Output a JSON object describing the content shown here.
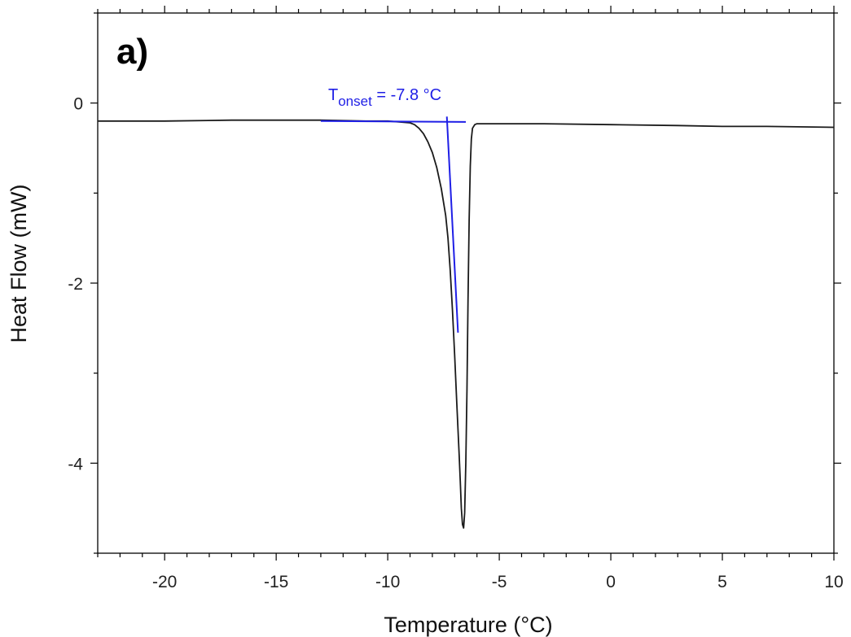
{
  "chart_data": {
    "type": "line",
    "panel_label": "a)",
    "xlabel": "Temperature (°C)",
    "ylabel": "Heat Flow (mW)",
    "xlim": [
      -23,
      10
    ],
    "ylim": [
      -5,
      1
    ],
    "x_ticks": [
      -20,
      -15,
      -10,
      -5,
      0,
      5,
      10
    ],
    "y_ticks": [
      -4,
      -2,
      0
    ],
    "x_tick_labels": [
      "-20",
      "-15",
      "-10",
      "-5",
      "0",
      "5",
      "10"
    ],
    "y_tick_labels": [
      "-4",
      "-2",
      "0"
    ],
    "grid": false,
    "colors": {
      "curve": "#1a1a1a",
      "annotation": "#1f1fe6",
      "axis": "#000000"
    },
    "series": [
      {
        "x": [
          -23,
          -20,
          -17,
          -15,
          -13,
          -11,
          -10,
          -9.5,
          -9,
          -8.8,
          -8.6,
          -8.4,
          -8.2,
          -8.0,
          -7.8,
          -7.6,
          -7.4,
          -7.3,
          -7.2,
          -7.1,
          -7.0,
          -6.9,
          -6.8,
          -6.75,
          -6.7,
          -6.65,
          -6.6,
          -6.55,
          -6.5,
          -6.45,
          -6.4,
          -6.35,
          -6.3,
          -6.25,
          -6.2,
          -6.1,
          -6.0,
          -5.5,
          -5,
          -3,
          0,
          3,
          5,
          7,
          10
        ],
        "y": [
          -0.2,
          -0.2,
          -0.19,
          -0.19,
          -0.19,
          -0.2,
          -0.2,
          -0.21,
          -0.22,
          -0.24,
          -0.28,
          -0.34,
          -0.43,
          -0.55,
          -0.72,
          -0.95,
          -1.25,
          -1.5,
          -1.85,
          -2.3,
          -2.8,
          -3.35,
          -3.9,
          -4.2,
          -4.5,
          -4.68,
          -4.72,
          -4.55,
          -4.0,
          -3.2,
          -2.2,
          -1.3,
          -0.7,
          -0.4,
          -0.28,
          -0.24,
          -0.23,
          -0.23,
          -0.23,
          -0.23,
          -0.24,
          -0.25,
          -0.26,
          -0.26,
          -0.27
        ]
      }
    ],
    "annotation": {
      "text_main": "T",
      "text_sub": "onset",
      "text_value": " = -7.8 °C",
      "baseline_tangent": {
        "x": [
          -13,
          -6.5
        ],
        "y": [
          -0.2,
          -0.21
        ]
      },
      "slope_tangent": {
        "x": [
          -7.35,
          -6.85
        ],
        "y": [
          -0.15,
          -2.55
        ]
      }
    }
  }
}
